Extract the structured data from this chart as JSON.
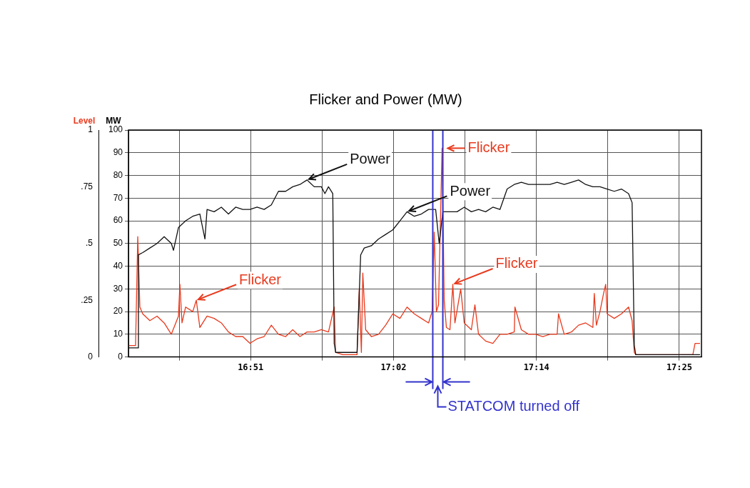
{
  "chart_data": {
    "type": "line",
    "title": "Flicker and Power (MW)",
    "ylabel": "MW",
    "y2label": "Level",
    "xlim": [
      16.6885,
      17.446
    ],
    "xticks": [
      {
        "value": 16.7556,
        "label": null
      },
      {
        "value": 16.85,
        "label": "16:51"
      },
      {
        "value": 16.9444,
        "label": null
      },
      {
        "value": 17.0389,
        "label": "17:02"
      },
      {
        "value": 17.1333,
        "label": null
      },
      {
        "value": 17.2278,
        "label": "17:14"
      },
      {
        "value": 17.3222,
        "label": null
      },
      {
        "value": 17.4167,
        "label": "17:25"
      }
    ],
    "ylim": [
      0,
      100
    ],
    "yticks": [
      {
        "value": 0,
        "label": "0"
      },
      10,
      20,
      30,
      40,
      50,
      60,
      70,
      80,
      90,
      100
    ],
    "y2lim": [
      0,
      1
    ],
    "y2ticks": [
      {
        "value": 0,
        "label": "0"
      },
      {
        "value": 0.25,
        "label": ".25"
      },
      {
        "value": 0.5,
        "label": ".5"
      },
      {
        "value": 0.75,
        "label": ".75"
      },
      1
    ],
    "grid": true,
    "legend": false,
    "marker": "none",
    "line_style": "solid",
    "series": [
      {
        "color": "#111111",
        "x": [
          16.6885,
          16.6979,
          16.7008,
          16.7017,
          16.7074,
          16.7168,
          16.7263,
          16.7357,
          16.7452,
          16.748,
          16.7546,
          16.7641,
          16.7735,
          16.7829,
          16.7896,
          16.7924,
          16.8018,
          16.8113,
          16.8207,
          16.8302,
          16.8396,
          16.8491,
          16.8585,
          16.8679,
          16.8774,
          16.8868,
          16.8963,
          16.9057,
          16.9152,
          16.9246,
          16.9341,
          16.9435,
          16.9482,
          16.9529,
          16.9586,
          16.9605,
          16.9624,
          16.9718,
          16.9813,
          16.9907,
          16.9955,
          17.0002,
          17.0096,
          17.0191,
          17.0285,
          17.0379,
          17.0474,
          17.0568,
          17.0663,
          17.0757,
          17.0852,
          17.0946,
          17.0993,
          17.1041,
          17.1135,
          17.1229,
          17.1324,
          17.1418,
          17.1513,
          17.1607,
          17.1702,
          17.1796,
          17.1891,
          17.1985,
          17.2079,
          17.2174,
          17.2268,
          17.2363,
          17.2457,
          17.2552,
          17.2646,
          17.2741,
          17.2835,
          17.2929,
          17.3024,
          17.3118,
          17.3213,
          17.3307,
          17.3402,
          17.3496,
          17.3543,
          17.3572,
          17.3591,
          17.3685,
          17.4157,
          17.4441
        ],
        "values": [
          4,
          4,
          4,
          45,
          46,
          48,
          50,
          53,
          50,
          47,
          57,
          60,
          62,
          63,
          52,
          65,
          64,
          66,
          63,
          66,
          65,
          65,
          66,
          65,
          67,
          73,
          73,
          75,
          76,
          78,
          75,
          75,
          72,
          75,
          72,
          6,
          2,
          2,
          2,
          2,
          45,
          48,
          49,
          52,
          54,
          56,
          60,
          64,
          62,
          63,
          65,
          65,
          50,
          64,
          64,
          64,
          66,
          64,
          65,
          64,
          66,
          65,
          74,
          76,
          77,
          76,
          76,
          76,
          76,
          77,
          76,
          77,
          78,
          76,
          75,
          75,
          74,
          73,
          74,
          72,
          68,
          5,
          1,
          1,
          1,
          1
        ]
      },
      {
        "color": "#e83a1e",
        "axis": "y2",
        "x": [
          16.6885,
          16.6979,
          16.7008,
          16.7036,
          16.7074,
          16.7168,
          16.7263,
          16.7357,
          16.7452,
          16.7546,
          16.7565,
          16.7593,
          16.7641,
          16.7735,
          16.7782,
          16.7829,
          16.7924,
          16.8018,
          16.8113,
          16.8207,
          16.8302,
          16.8396,
          16.8491,
          16.8585,
          16.8679,
          16.8774,
          16.8868,
          16.8963,
          16.9057,
          16.9152,
          16.9246,
          16.9341,
          16.9435,
          16.9529,
          16.9605,
          16.9624,
          16.9718,
          16.9907,
          16.9936,
          16.9964,
          16.9983,
          17.0021,
          17.0096,
          17.0191,
          17.0285,
          17.0379,
          17.0474,
          17.0568,
          17.0663,
          17.0757,
          17.0852,
          17.0899,
          17.0927,
          17.0956,
          17.0984,
          17.1012,
          17.1031,
          17.1059,
          17.1088,
          17.1135,
          17.1173,
          17.1201,
          17.1277,
          17.1324,
          17.1418,
          17.1465,
          17.1513,
          17.1607,
          17.1702,
          17.1796,
          17.1891,
          17.1985,
          17.1994,
          17.2079,
          17.2174,
          17.2268,
          17.2363,
          17.2457,
          17.2552,
          17.257,
          17.2646,
          17.2741,
          17.2835,
          17.2929,
          17.3024,
          17.3043,
          17.3071,
          17.3118,
          17.3166,
          17.3194,
          17.3213,
          17.3307,
          17.3402,
          17.3496,
          17.3543,
          17.3572,
          17.3591,
          17.4346,
          17.4375,
          17.4441
        ],
        "values": [
          0.05,
          0.05,
          0.53,
          0.22,
          0.19,
          0.16,
          0.18,
          0.15,
          0.1,
          0.18,
          0.32,
          0.15,
          0.22,
          0.2,
          0.25,
          0.13,
          0.18,
          0.17,
          0.15,
          0.11,
          0.09,
          0.09,
          0.06,
          0.08,
          0.09,
          0.14,
          0.1,
          0.09,
          0.12,
          0.09,
          0.11,
          0.11,
          0.12,
          0.11,
          0.22,
          0.02,
          0.01,
          0.01,
          0.3,
          0.02,
          0.37,
          0.12,
          0.09,
          0.1,
          0.14,
          0.19,
          0.17,
          0.22,
          0.19,
          0.17,
          0.15,
          0.2,
          0.55,
          0.2,
          0.23,
          0.64,
          0.92,
          0.25,
          0.13,
          0.12,
          0.32,
          0.15,
          0.3,
          0.15,
          0.12,
          0.23,
          0.1,
          0.07,
          0.06,
          0.1,
          0.1,
          0.11,
          0.22,
          0.12,
          0.1,
          0.1,
          0.09,
          0.1,
          0.1,
          0.19,
          0.1,
          0.11,
          0.14,
          0.15,
          0.13,
          0.28,
          0.14,
          0.2,
          0.28,
          0.32,
          0.19,
          0.17,
          0.19,
          0.22,
          0.16,
          0.02,
          0.01,
          0.01,
          0.06,
          0.06
        ]
      }
    ],
    "ref_lines": [
      {
        "axis": "x",
        "value": 17.0908,
        "color": "#3333cc"
      },
      {
        "axis": "x",
        "value": 17.1041,
        "color": "#3333cc"
      }
    ],
    "annotations": [
      {
        "text": "Power",
        "x": 16.9246,
        "y": 78
      },
      {
        "text": "Power",
        "x": 17.0568,
        "y": 64
      },
      {
        "text": "Flicker",
        "x": 16.7782,
        "y": 25
      },
      {
        "text": "Flicker",
        "x": 17.1031,
        "y": 92
      },
      {
        "text": "Flicker",
        "x": 17.1173,
        "y": 32
      },
      "STATCOM turned off"
    ]
  }
}
